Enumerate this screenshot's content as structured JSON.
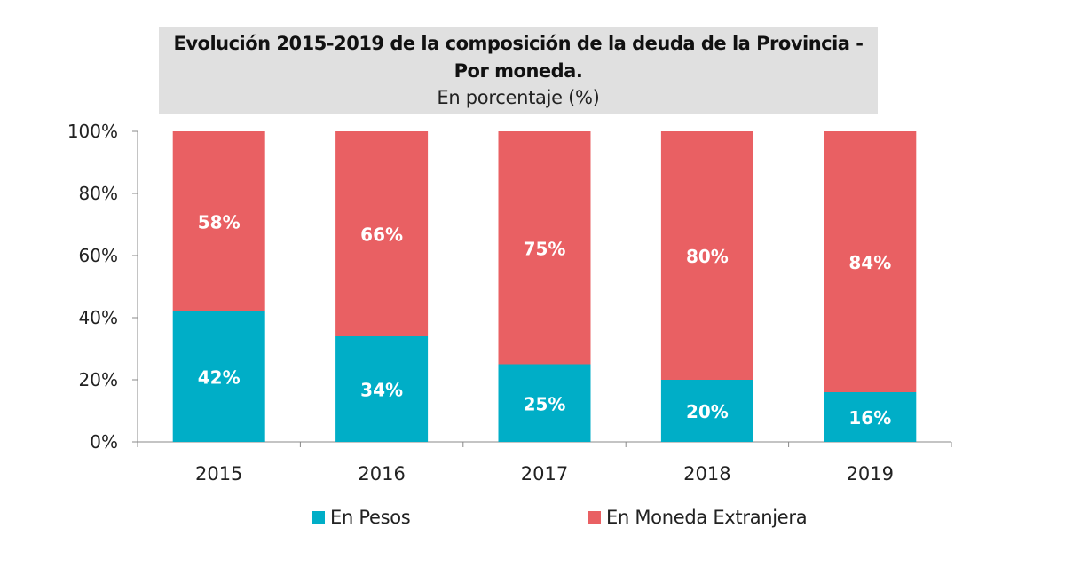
{
  "chart_data": {
    "type": "bar",
    "stacked": true,
    "title": "Evolución 2015-2019 de la composición de la deuda de la Provincia - Por moneda.",
    "title_lines": [
      "Evolución 2015-2019 de la composición de la deuda de la Provincia -",
      "Por moneda."
    ],
    "subtitle": "En porcentaje (%)",
    "categories": [
      "2015",
      "2016",
      "2017",
      "2018",
      "2019"
    ],
    "series": [
      {
        "name": "En Pesos",
        "color": "#00aec7",
        "values": [
          42,
          34,
          25,
          20,
          16
        ],
        "labels": [
          "42%",
          "34%",
          "25%",
          "20%",
          "16%"
        ]
      },
      {
        "name": "En Moneda Extranjera",
        "color": "#e96063",
        "values": [
          58,
          66,
          75,
          80,
          84
        ],
        "labels": [
          "58%",
          "66%",
          "75%",
          "80%",
          "84%"
        ]
      }
    ],
    "ylim": [
      0,
      100
    ],
    "yticks": [
      0,
      20,
      40,
      60,
      80,
      100
    ],
    "ytick_labels": [
      "0%",
      "20%",
      "40%",
      "60%",
      "80%",
      "100%"
    ],
    "xlabel": "",
    "ylabel": "",
    "grid": false,
    "legend_position": "bottom"
  }
}
